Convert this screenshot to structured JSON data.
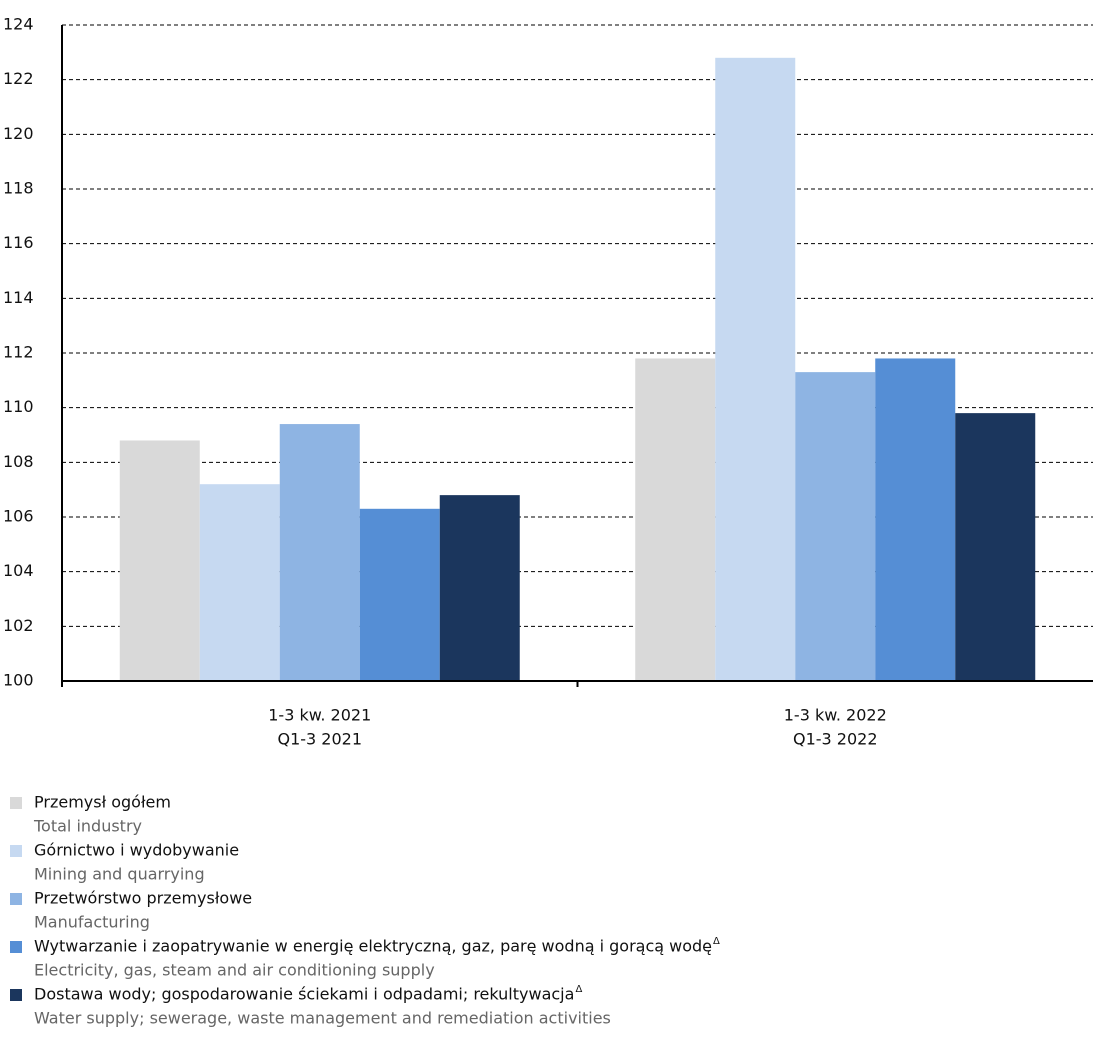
{
  "chart_data": {
    "type": "bar",
    "categories": [
      "1-3 kw. 2021",
      "1-3 kw. 2022"
    ],
    "category_subtitles": [
      "Q1-3 2021",
      "Q1-3 2022"
    ],
    "series": [
      {
        "name": "Przemysł ogółem",
        "name_en": "Total industry",
        "color": "#d9d9d9",
        "values": [
          108.8,
          111.8
        ]
      },
      {
        "name": "Górnictwo i wydobywanie",
        "name_en": "Mining and quarrying",
        "color": "#c6d9f1",
        "values": [
          107.2,
          122.8
        ]
      },
      {
        "name": "Przetwórstwo przemysłowe",
        "name_en": "Manufacturing",
        "color": "#8eb4e3",
        "values": [
          109.4,
          111.3
        ]
      },
      {
        "name": "Wytwarzanie i zaopatrywanie w energię elektryczną, gaz, parę wodną i gorącą wodę",
        "name_mark": "Δ",
        "name_en": "Electricity, gas, steam and air conditioning supply",
        "color": "#558ed5",
        "values": [
          106.3,
          111.8
        ]
      },
      {
        "name": "Dostawa wody; gospodarowanie ściekami i odpadami; rekultywacja",
        "name_mark": "Δ",
        "name_en": "Water supply; sewerage, waste management and remediation activities",
        "color": "#1b365d",
        "values": [
          106.8,
          109.8
        ]
      }
    ],
    "ylim": [
      100,
      124
    ],
    "yticks": [
      100,
      102,
      104,
      106,
      108,
      110,
      112,
      114,
      116,
      118,
      120,
      122,
      124
    ],
    "grid": true
  }
}
